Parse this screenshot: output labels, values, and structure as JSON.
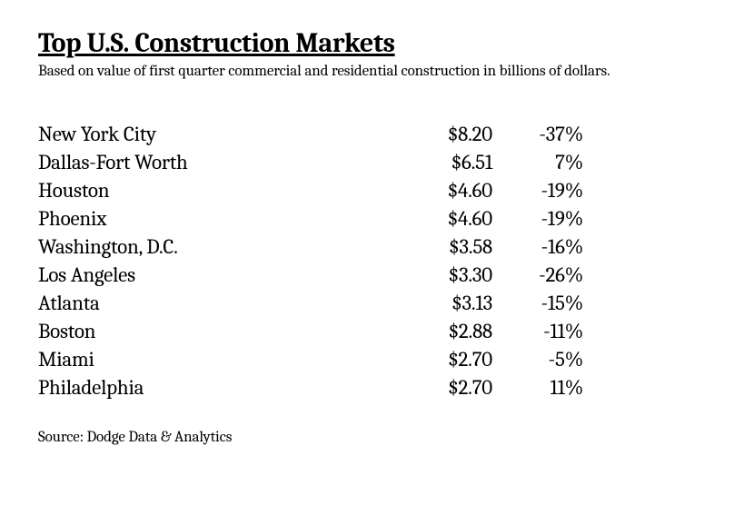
{
  "title": "Top U.S. Construction Markets",
  "subtitle": "Based on value of first quarter commercial and residential construction in billions of dollars.",
  "table": {
    "rows": [
      {
        "city": "New York City",
        "value": "$8.20",
        "change": "-37%"
      },
      {
        "city": "Dallas-Fort Worth",
        "value": "$6.51",
        "change": "7%"
      },
      {
        "city": "Houston",
        "value": "$4.60",
        "change": "-19%"
      },
      {
        "city": "Phoenix",
        "value": "$4.60",
        "change": "-19%"
      },
      {
        "city": "Washington, D.C.",
        "value": "$3.58",
        "change": "-16%"
      },
      {
        "city": "Los Angeles",
        "value": "$3.30",
        "change": "-26%"
      },
      {
        "city": "Atlanta",
        "value": "$3.13",
        "change": "-15%"
      },
      {
        "city": "Boston",
        "value": "$2.88",
        "change": "-11%"
      },
      {
        "city": "Miami",
        "value": "$2.70",
        "change": "-5%"
      },
      {
        "city": "Philadelphia",
        "value": "$2.70",
        "change": "11%"
      }
    ]
  },
  "source": "Source: Dodge Data & Analytics",
  "styling": {
    "background_color": "#ffffff",
    "text_color": "#000000",
    "font_family": "Cambria, Georgia, serif",
    "title_fontsize": 30,
    "subtitle_fontsize": 17,
    "row_fontsize": 23,
    "source_fontsize": 17,
    "col_city_width": 410,
    "col_value_width": 90,
    "col_change_width": 100
  }
}
